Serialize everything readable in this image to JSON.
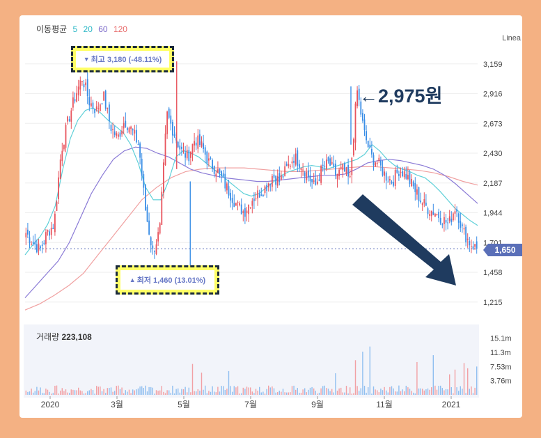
{
  "ma_legend": {
    "title": "이동평균",
    "periods": [
      {
        "label": "5",
        "color": "#2ab7c6"
      },
      {
        "label": "20",
        "color": "#2ab7c6"
      },
      {
        "label": "60",
        "color": "#7a68c8"
      },
      {
        "label": "120",
        "color": "#e86b6b"
      }
    ]
  },
  "scale_label": "Linea",
  "colors": {
    "up": "#e8545d",
    "down": "#3a8ee6",
    "ma20": "#5fd0d8",
    "ma60": "#8a7ad6",
    "ma120": "#f0a0a0",
    "annotation": "#1f3b5f"
  },
  "high_callout": {
    "icon": "▼",
    "text": "최고 3,180 (-48.11%)"
  },
  "low_callout": {
    "icon": "▲",
    "text": "최저 1,460 (13.01%)"
  },
  "annotation": {
    "arrow": "←",
    "text": "2,975원"
  },
  "current_price": "1,650",
  "volume": {
    "label": "거래량",
    "value": "223,108"
  },
  "chart_data": {
    "type": "candlestick",
    "x_ticks": [
      "2020",
      "3월",
      "5월",
      "7월",
      "9월",
      "11월",
      "2021"
    ],
    "y_ticks": [
      "3,159",
      "2,916",
      "2,673",
      "2,430",
      "2,187",
      "1,944",
      "1,701",
      "1,458",
      "1,215"
    ],
    "y_tick_values": [
      3159,
      2916,
      2673,
      2430,
      2187,
      1944,
      1701,
      1458,
      1215
    ],
    "ylim": [
      1100,
      3300
    ],
    "volume_ticks": [
      "15.1m",
      "11.3m",
      "7.53m",
      "3.76m"
    ],
    "volume_tick_values": [
      15.1,
      11.3,
      7.53,
      3.76
    ],
    "volume_ylim": [
      0,
      18
    ],
    "high": 3180,
    "low": 1460,
    "last": 1650,
    "close_path": [
      1780,
      1700,
      1640,
      1780,
      1850,
      2450,
      2700,
      2900,
      3050,
      2850,
      2780,
      2900,
      2650,
      2550,
      2700,
      2620,
      2500,
      1950,
      1620,
      1800,
      2750,
      2600,
      2450,
      2400,
      2550,
      2480,
      2350,
      2300,
      2200,
      2100,
      2000,
      1950,
      2050,
      2100,
      2150,
      2250,
      2200,
      2300,
      2400,
      2350,
      2250,
      2150,
      2300,
      2350,
      2250,
      2300,
      2200,
      2950,
      2600,
      2400,
      2350,
      2250,
      2200,
      2300,
      2250,
      2150,
      2050,
      1980,
      1950,
      1900,
      1850,
      2000,
      1800,
      1700,
      1650
    ],
    "ma20_path": [
      1600,
      1680,
      1750,
      1850,
      2000,
      2300,
      2550,
      2700,
      2780,
      2800,
      2760,
      2700,
      2650,
      2600,
      2500,
      2350,
      2150,
      2050,
      2050,
      2200,
      2400,
      2450,
      2430,
      2400,
      2350,
      2300,
      2250,
      2200,
      2150,
      2100,
      2080,
      2100,
      2150,
      2200,
      2250,
      2280,
      2300,
      2320,
      2330,
      2320,
      2300,
      2320,
      2340,
      2360,
      2380,
      2420,
      2500,
      2450,
      2380,
      2330,
      2300,
      2280,
      2250,
      2230,
      2180,
      2120,
      2050,
      1980,
      1930,
      1880,
      1840
    ],
    "ma60_path": [
      1250,
      1350,
      1450,
      1550,
      1700,
      1900,
      2100,
      2250,
      2380,
      2450,
      2480,
      2470,
      2430,
      2400,
      2350,
      2300,
      2270,
      2250,
      2230,
      2220,
      2210,
      2200,
      2200,
      2210,
      2220,
      2230,
      2240,
      2250,
      2250,
      2260,
      2300,
      2350,
      2370,
      2380,
      2370,
      2350,
      2330,
      2300,
      2250,
      2180,
      2100,
      2020
    ],
    "ma120_path": [
      1150,
      1200,
      1270,
      1350,
      1450,
      1600,
      1750,
      1900,
      2050,
      2150,
      2230,
      2280,
      2300,
      2310,
      2310,
      2310,
      2300,
      2290,
      2280,
      2280,
      2290,
      2300,
      2310,
      2320,
      2320,
      2310,
      2300,
      2290,
      2270,
      2240,
      2200,
      2170
    ]
  }
}
